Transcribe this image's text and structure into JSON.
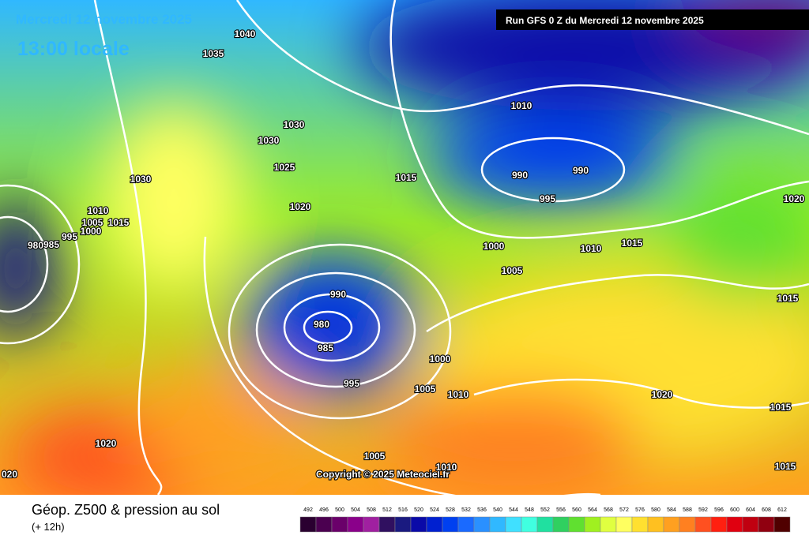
{
  "header": {
    "date": "Mercredi 12 novembre 2025",
    "time": "13:00 locale",
    "run": "Run GFS 0 Z du Mercredi 12 novembre 2025"
  },
  "isobar_labels": [
    "1040",
    "1035",
    "1030",
    "1030",
    "1025",
    "1030",
    "1020",
    "1015",
    "1010",
    "990",
    "990",
    "995",
    "1020",
    "1000",
    "1010",
    "1015",
    "1005",
    "1015",
    "990",
    "980",
    "985",
    "995",
    "1000",
    "1005",
    "1010",
    "1020",
    "1015",
    "1020",
    "1005",
    "1010",
    "1015",
    "020",
    "1010",
    "1005",
    "1015",
    "1000",
    "995",
    "985",
    "980"
  ],
  "copyright": "Copyright © 2025 Meteociel.fr",
  "footer": {
    "title": "Géop. Z500 & pression au sol",
    "lead": "(+ 12h)"
  },
  "legend": {
    "values": [
      492,
      496,
      500,
      504,
      508,
      512,
      516,
      520,
      524,
      528,
      532,
      536,
      540,
      544,
      548,
      552,
      556,
      560,
      564,
      568,
      572,
      576,
      580,
      584,
      588,
      592,
      596,
      600,
      604,
      608,
      612
    ],
    "colors": [
      "#2a0030",
      "#4b0050",
      "#6a006a",
      "#8a008a",
      "#a020a0",
      "#301060",
      "#1a1a80",
      "#0a0aa8",
      "#0020d0",
      "#0040f0",
      "#1a6aff",
      "#2a90ff",
      "#30b8ff",
      "#40e0ff",
      "#40ffe0",
      "#20e0a0",
      "#30d060",
      "#60e030",
      "#a0f020",
      "#e0ff40",
      "#ffff60",
      "#ffe030",
      "#ffc020",
      "#ffa020",
      "#ff8020",
      "#ff5020",
      "#ff2010",
      "#e00010",
      "#c00010",
      "#900010",
      "#500000"
    ]
  }
}
